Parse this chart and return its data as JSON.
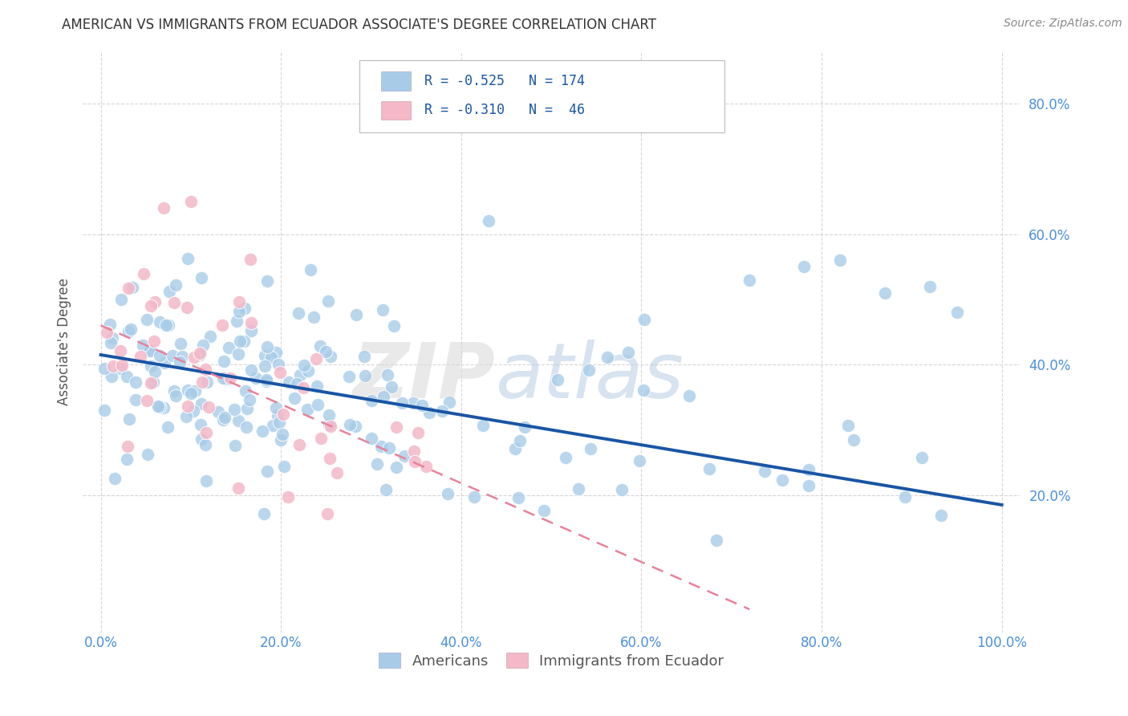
{
  "title": "AMERICAN VS IMMIGRANTS FROM ECUADOR ASSOCIATE'S DEGREE CORRELATION CHART",
  "source": "Source: ZipAtlas.com",
  "ylabel": "Associate's Degree",
  "watermark": "ZIPatlas",
  "legend_label_blue": "Americans",
  "legend_label_pink": "Immigrants from Ecuador",
  "blue_color": "#a8cce8",
  "pink_color": "#f4b8c8",
  "blue_line_color": "#1955a5",
  "pink_line_color": "#e8829a",
  "bg_color": "#ffffff",
  "grid_color": "#cccccc",
  "xlim": [
    -0.02,
    1.02
  ],
  "ylim": [
    -0.01,
    0.88
  ],
  "xticks": [
    0.0,
    0.2,
    0.4,
    0.6,
    0.8,
    1.0
  ],
  "yticks": [
    0.2,
    0.4,
    0.6,
    0.8
  ],
  "xtick_labels": [
    "0.0%",
    "20.0%",
    "40.0%",
    "60.0%",
    "80.0%",
    "100.0%"
  ],
  "ytick_labels": [
    "20.0%",
    "40.0%",
    "60.0%",
    "80.0%"
  ],
  "blue_trendline_x": [
    0.0,
    1.0
  ],
  "blue_trendline_y": [
    0.415,
    0.185
  ],
  "pink_trendline_x": [
    0.0,
    0.72
  ],
  "pink_trendline_y": [
    0.46,
    0.025
  ],
  "title_fontsize": 12,
  "source_fontsize": 10,
  "tick_fontsize": 12,
  "ylabel_fontsize": 12
}
